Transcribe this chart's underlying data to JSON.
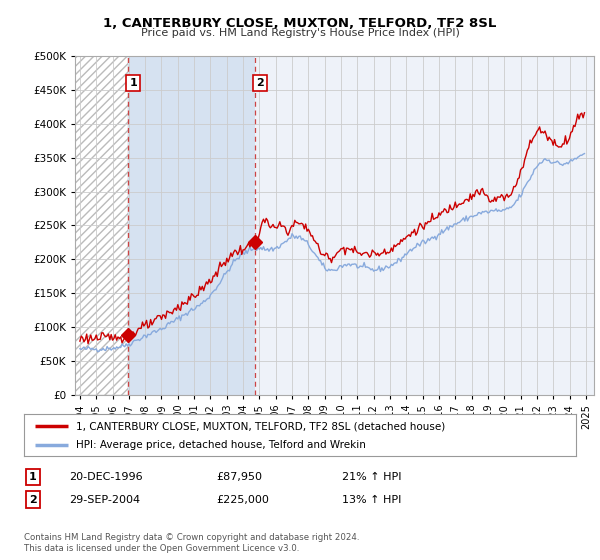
{
  "title": "1, CANTERBURY CLOSE, MUXTON, TELFORD, TF2 8SL",
  "subtitle": "Price paid vs. HM Land Registry's House Price Index (HPI)",
  "ytick_values": [
    0,
    50000,
    100000,
    150000,
    200000,
    250000,
    300000,
    350000,
    400000,
    450000,
    500000
  ],
  "ylim": [
    0,
    500000
  ],
  "xlim_start": 1993.7,
  "xlim_end": 2025.5,
  "xticks": [
    1994,
    1995,
    1996,
    1997,
    1998,
    1999,
    2000,
    2001,
    2002,
    2003,
    2004,
    2005,
    2006,
    2007,
    2008,
    2009,
    2010,
    2011,
    2012,
    2013,
    2014,
    2015,
    2016,
    2017,
    2018,
    2019,
    2020,
    2021,
    2022,
    2023,
    2024,
    2025
  ],
  "marker1_x": 1996.97,
  "marker1_y": 87950,
  "marker1_label": "1",
  "marker1_date": "20-DEC-1996",
  "marker1_price": "£87,950",
  "marker1_hpi": "21% ↑ HPI",
  "marker2_x": 2004.75,
  "marker2_y": 225000,
  "marker2_label": "2",
  "marker2_date": "29-SEP-2004",
  "marker2_price": "£225,000",
  "marker2_hpi": "13% ↑ HPI",
  "line1_color": "#cc0000",
  "line2_color": "#88aadd",
  "line1_label": "1, CANTERBURY CLOSE, MUXTON, TELFORD, TF2 8SL (detached house)",
  "line2_label": "HPI: Average price, detached house, Telford and Wrekin",
  "grid_color": "#cccccc",
  "bg_color": "#ffffff",
  "plot_bg": "#dde8f5",
  "hatch_color": "#aaaaaa",
  "shade_between_color": "#dde8f5",
  "footer": "Contains HM Land Registry data © Crown copyright and database right 2024.\nThis data is licensed under the Open Government Licence v3.0."
}
